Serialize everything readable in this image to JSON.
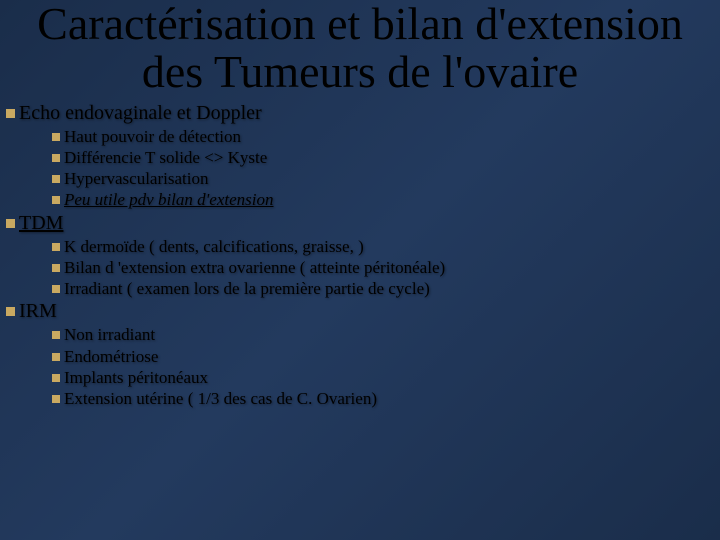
{
  "colors": {
    "background_gradient": [
      "#1a2d4a",
      "#233a5e",
      "#1a2d4a"
    ],
    "bullet_color": "#c9a961",
    "text_color": "#000000"
  },
  "typography": {
    "title_fontsize": 46,
    "level1_fontsize": 20,
    "level2_fontsize": 17,
    "font_family": "Times New Roman"
  },
  "title": "Caractérisation et bilan d'extension des Tumeurs de l'ovaire",
  "sections": [
    {
      "label": "Echo endovaginale et Doppler",
      "style": "plain",
      "items": [
        {
          "text": "Haut pouvoir de détection",
          "style": "plain"
        },
        {
          "text": "Différencie T solide <> Kyste",
          "style": "plain"
        },
        {
          "text": "Hypervascularisation",
          "style": "plain"
        },
        {
          "text": "Peu utile pdv bilan d'extension",
          "style": "italic-underline"
        }
      ]
    },
    {
      "label": "TDM",
      "style": "underline",
      "items": [
        {
          "text": "K dermoïde ( dents, calcifications, graisse, )",
          "style": "plain"
        },
        {
          "text": "Bilan d 'extension extra ovarienne (  atteinte péritonéale)",
          "style": "plain"
        },
        {
          "text": "Irradiant ( examen lors de la première partie de cycle)",
          "style": "plain"
        }
      ]
    },
    {
      "label": "IRM",
      "style": "plain",
      "items": [
        {
          "text": "Non irradiant",
          "style": "plain"
        },
        {
          "text": "Endométriose",
          "style": "plain"
        },
        {
          "text": "Implants péritonéaux",
          "style": "plain"
        },
        {
          "text": "Extension utérine ( 1/3 des cas de C. Ovarien)",
          "style": "plain"
        }
      ]
    }
  ]
}
